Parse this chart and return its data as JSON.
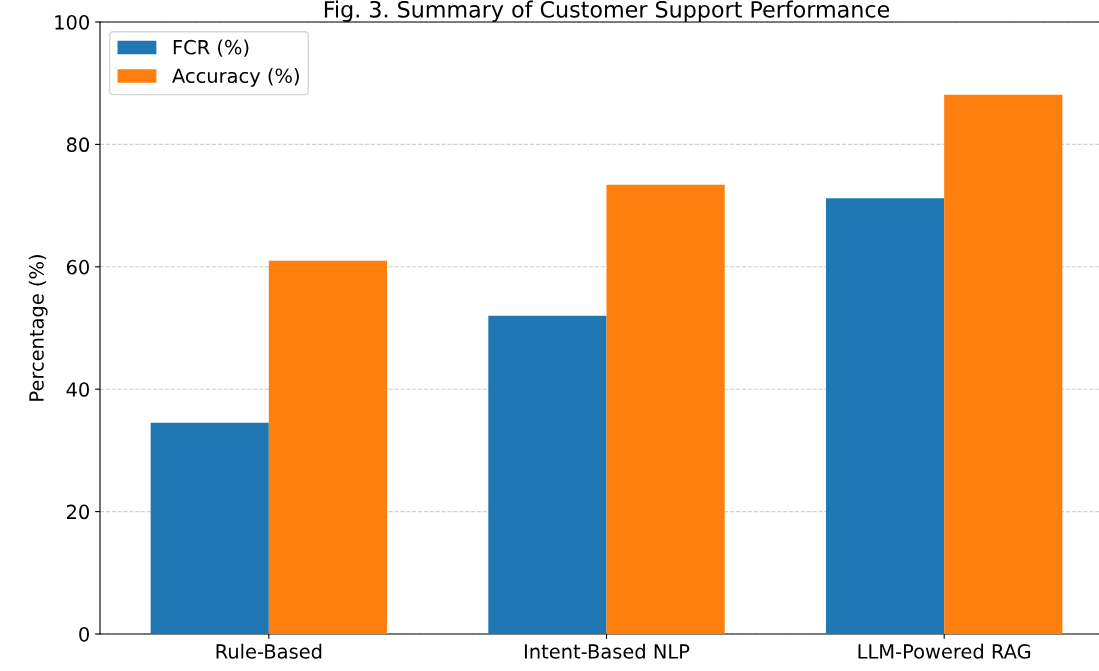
{
  "chart_data": {
    "type": "bar",
    "title": "Fig. 3. Summary of Customer Support Performance",
    "ylabel": "Percentage (%)",
    "categories": [
      "Rule-Based",
      "Intent-Based NLP",
      "LLM-Powered RAG"
    ],
    "series": [
      {
        "name": "FCR (%)",
        "color": "#1f77b4",
        "values": [
          34.5,
          52.0,
          71.2
        ]
      },
      {
        "name": "Accuracy (%)",
        "color": "#ff7f0e",
        "values": [
          61.0,
          73.4,
          88.1
        ]
      }
    ],
    "ylim": [
      0,
      100
    ],
    "yticks": [
      0,
      20,
      40,
      60,
      80,
      100
    ],
    "grid": "y",
    "legend": "top left"
  }
}
